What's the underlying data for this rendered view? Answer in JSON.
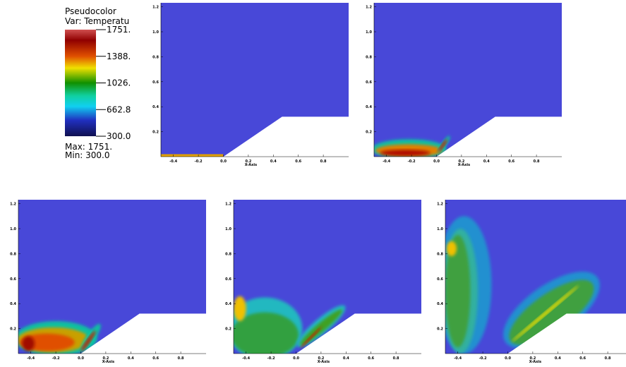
{
  "legend": {
    "title": "Pseudocolor",
    "variable": "Var: Temperatu",
    "ticks": [
      "1751.",
      "1388.",
      "1026.",
      "662.8",
      "300.0"
    ],
    "max": "Max:  1751.",
    "min": "Min: 300.0"
  },
  "panels": [
    {
      "x_ticks": [
        "-0.4",
        "-0.2",
        "0.0",
        "0.2",
        "0.4",
        "0.6",
        "0.8"
      ],
      "y_ticks": [
        "0.2",
        "0.4",
        "0.6",
        "0.8",
        "1.0",
        "1.2"
      ],
      "x_label": "X-Axis"
    },
    {
      "x_ticks": [
        "-0.4",
        "-0.2",
        "0.0",
        "0.2",
        "0.4",
        "0.6",
        "0.8"
      ],
      "y_ticks": [
        "0.2",
        "0.4",
        "0.6",
        "0.8",
        "1.0",
        "1.2"
      ],
      "x_label": "X-Axis"
    },
    {
      "x_ticks": [
        "-0.4",
        "-0.2",
        "0.0",
        "0.2",
        "0.4",
        "0.6",
        "0.8"
      ],
      "y_ticks": [
        "0.2",
        "0.4",
        "0.6",
        "0.8",
        "1.0",
        "1.2"
      ],
      "x_label": "X-Axis"
    },
    {
      "x_ticks": [
        "-0.4",
        "-0.2",
        "0.0",
        "0.2",
        "0.4",
        "0.6",
        "0.8"
      ],
      "y_ticks": [
        "0.2",
        "0.4",
        "0.6",
        "0.8",
        "1.0",
        "1.2"
      ],
      "x_label": "X-Axis"
    },
    {
      "x_ticks": [
        "-0.4",
        "-0.2",
        "0.0",
        "0.2",
        "0.4",
        "0.6",
        "0.8"
      ],
      "y_ticks": [
        "0.2",
        "0.4",
        "0.6",
        "0.8",
        "1.0",
        "1.2"
      ],
      "x_label": "X-Axis"
    }
  ]
}
